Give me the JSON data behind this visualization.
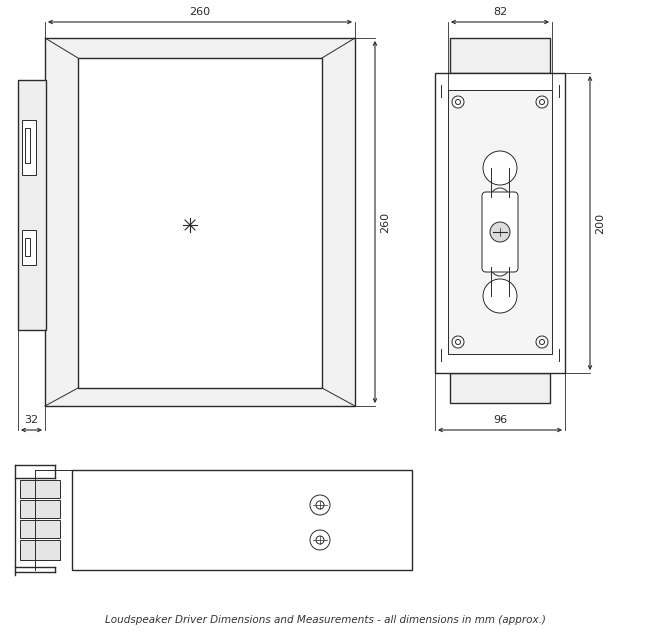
{
  "bg_color": "#ffffff",
  "line_color": "#2a2a2a",
  "dim_color": "#2a2a2a",
  "figsize": [
    6.5,
    6.35
  ],
  "dpi": 100,
  "annotations": {
    "title": "Loudspeaker Driver Dimensions and Measurements - all dimensions in mm (approx.)"
  }
}
